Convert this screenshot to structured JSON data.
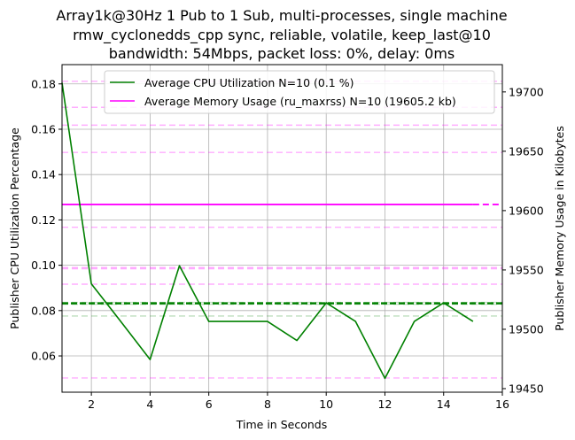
{
  "chart_data": {
    "type": "line",
    "title_lines": [
      "Array1k@30Hz 1 Pub to 1 Sub, multi-processes, single machine",
      "rmw_cyclonedds_cpp sync, reliable, volatile, keep_last@10",
      "bandwidth: 54Mbps, packet loss: 0%, delay: 0ms"
    ],
    "xlabel": "Time in Seconds",
    "ylabel_left": "Publisher CPU Utilization Percentage",
    "ylabel_right": "Publisher Memory Usage in Kilobytes",
    "xlim": [
      1,
      16
    ],
    "ylim_left": [
      0.044,
      0.1885
    ],
    "ylim_right": [
      19447,
      19723
    ],
    "x_ticks": [
      2,
      4,
      6,
      8,
      10,
      12,
      14,
      16
    ],
    "y_left_ticks": [
      0.06,
      0.08,
      0.1,
      0.12,
      0.14,
      0.16,
      0.18
    ],
    "y_left_tick_labels": [
      "0.06",
      "0.08",
      "0.10",
      "0.12",
      "0.14",
      "0.16",
      "0.18"
    ],
    "y_right_ticks": [
      19450,
      19500,
      19550,
      19600,
      19650,
      19700
    ],
    "y_right_tick_labels": [
      "19450",
      "19500",
      "19550",
      "19600",
      "19650",
      "19700"
    ],
    "grid": true,
    "legend_position": "top-right",
    "series": [
      {
        "name": "Average CPU Utilization N=10 (0.1 %)",
        "axis": "left",
        "color": "#008000",
        "x": [
          1,
          2,
          3,
          4,
          5,
          6,
          7,
          8,
          9,
          10,
          11,
          12,
          13,
          14,
          15
        ],
        "values": [
          0.1805,
          0.0918,
          0.0752,
          0.0584,
          0.0998,
          0.0752,
          0.0752,
          0.0752,
          0.0668,
          0.0834,
          0.0752,
          0.0501,
          0.0752,
          0.0834,
          0.0752
        ],
        "mean": 0.0832,
        "band": [
          0.0776,
          0.0828,
          0.0836
        ]
      },
      {
        "name": "Average Memory Usage (ru_maxrss) N=10 (19605.2 kb)",
        "axis": "right",
        "color": "#ff00ff",
        "x": [
          1,
          15
        ],
        "values": [
          19605.2,
          19605.2
        ],
        "mean": 19605.2,
        "band": [
          19459,
          19538,
          19551,
          19586,
          19649,
          19672,
          19687,
          19709,
          19552
        ]
      }
    ]
  }
}
